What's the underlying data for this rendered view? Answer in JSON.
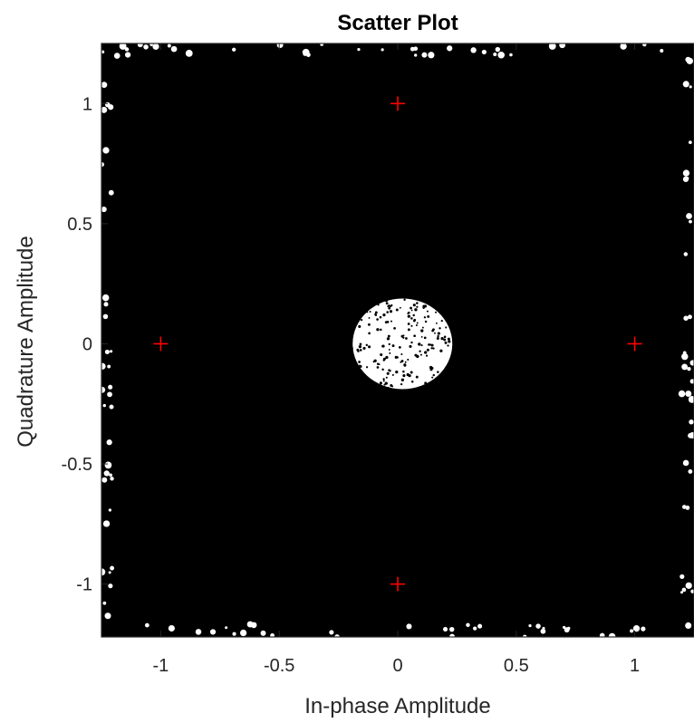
{
  "chart_data": {
    "type": "scatter",
    "title": "Scatter Plot",
    "xlabel": "In-phase Amplitude",
    "ylabel": "Quadrature Amplitude",
    "xlim": [
      -1.25,
      1.25
    ],
    "ylim": [
      -1.22,
      1.25
    ],
    "x_ticks": [
      -1,
      -0.5,
      0,
      0.5,
      1
    ],
    "x_tick_labels": [
      "-1",
      "-0.5",
      "0",
      "0.5",
      "1"
    ],
    "y_ticks": [
      -1,
      -0.5,
      0,
      0.5,
      1
    ],
    "y_tick_labels": [
      "-1",
      "-0.5",
      "0",
      "0.5",
      "1"
    ],
    "grid": false,
    "legend": false,
    "series": [
      {
        "marker": "asterisk",
        "color": "#000000",
        "description_of_distribution": "dense noisy received samples covering the full plot area, near-empty region around the origin",
        "points_sample": []
      },
      {
        "marker": "plus",
        "color": "#ff0000",
        "points": [
          {
            "x": 1,
            "y": 0
          },
          {
            "x": 0,
            "y": 1
          },
          {
            "x": -1,
            "y": 0
          },
          {
            "x": 0,
            "y": -1
          }
        ]
      }
    ]
  }
}
